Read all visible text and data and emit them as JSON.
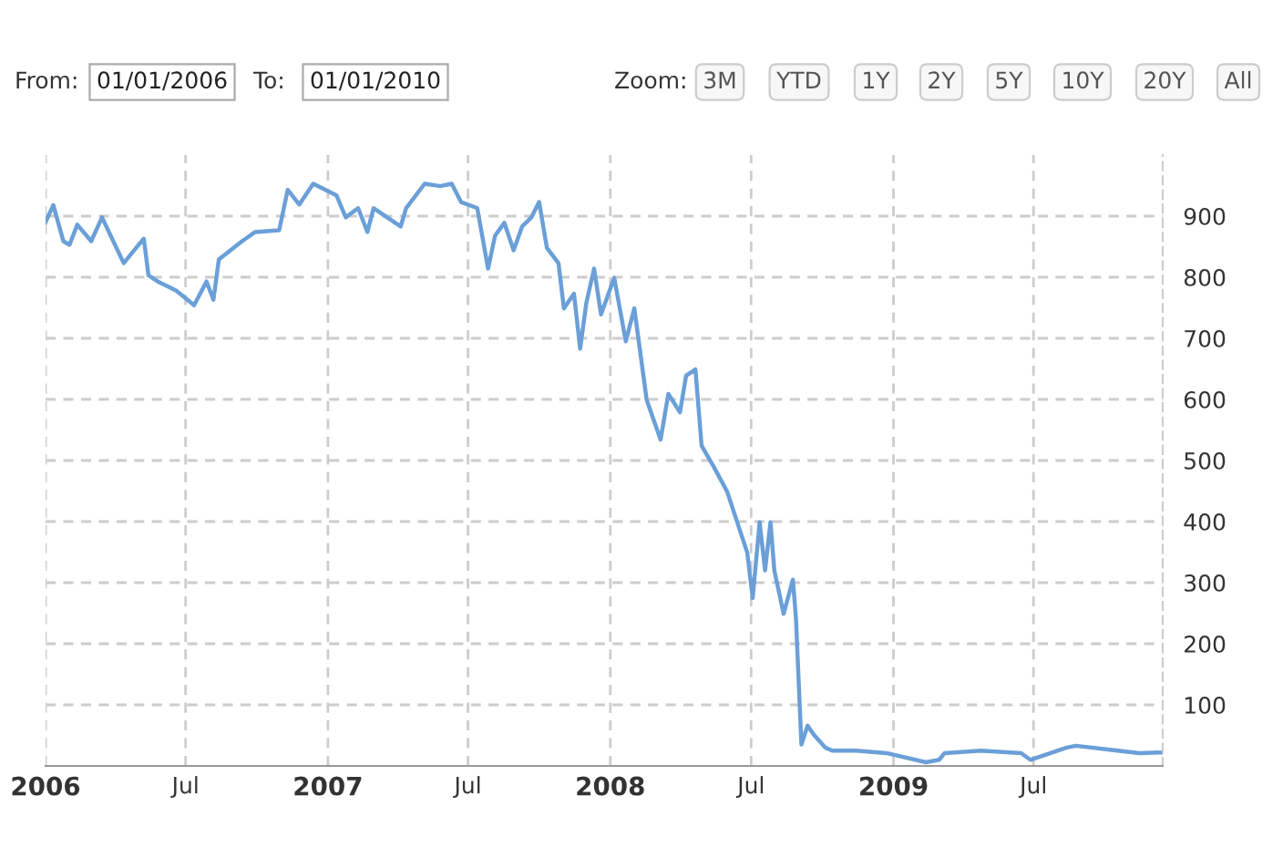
{
  "chart_data": {
    "type": "line",
    "annotations": [
      "From:",
      "01/01/2006",
      "To:",
      "01/01/2010",
      "Zoom:",
      "3M",
      "YTD",
      "1Y",
      "2Y",
      "5Y",
      "10Y",
      "20Y",
      "All"
    ],
    "x": [
      "2006-01-01",
      "2006-01-11",
      "2006-01-24",
      "2006-02-01",
      "2006-02-11",
      "2006-03-01",
      "2006-03-15",
      "2006-03-28",
      "2006-04-12",
      "2006-04-28",
      "2006-05-08",
      "2006-05-14",
      "2006-05-26",
      "2006-06-19",
      "2006-07-12",
      "2006-07-28",
      "2006-08-06",
      "2006-08-13",
      "2006-09-12",
      "2006-09-29",
      "2006-10-30",
      "2006-11-10",
      "2006-11-25",
      "2006-12-13",
      "2007-01-12",
      "2007-01-24",
      "2007-02-09",
      "2007-02-21",
      "2007-03-01",
      "2007-04-05",
      "2007-04-12",
      "2007-05-06",
      "2007-05-26",
      "2007-06-10",
      "2007-06-22",
      "2007-07-13",
      "2007-07-27",
      "2007-08-05",
      "2007-08-17",
      "2007-08-29",
      "2007-09-09",
      "2007-09-21",
      "2007-10-01",
      "2007-10-11",
      "2007-10-26",
      "2007-11-02",
      "2007-11-15",
      "2007-11-23",
      "2007-12-01",
      "2007-12-11",
      "2007-12-20",
      "2008-01-06",
      "2008-01-21",
      "2008-02-01",
      "2008-02-17",
      "2008-03-06",
      "2008-03-16",
      "2008-03-31",
      "2008-04-08",
      "2008-04-20",
      "2008-04-28",
      "2008-05-14",
      "2008-05-31",
      "2008-06-26",
      "2008-07-03",
      "2008-07-12",
      "2008-07-19",
      "2008-07-26",
      "2008-07-31",
      "2008-08-12",
      "2008-08-24",
      "2008-08-28",
      "2008-09-04",
      "2008-09-12",
      "2008-09-20",
      "2008-10-05",
      "2008-10-14",
      "2008-11-14",
      "2008-12-23",
      "2009-02-12",
      "2009-03-01",
      "2009-03-08",
      "2009-04-24",
      "2009-06-15",
      "2009-06-27",
      "2009-08-13",
      "2009-08-25",
      "2009-10-18",
      "2009-11-15",
      "2009-12-13"
    ],
    "series": [
      {
        "color": "#6a9fd8",
        "values": [
          890,
          918,
          859,
          853,
          886,
          859,
          898,
          863,
          823,
          848,
          863,
          803,
          793,
          778,
          754,
          793,
          763,
          829,
          859,
          874,
          877,
          943,
          919,
          953,
          934,
          898,
          913,
          874,
          913,
          883,
          913,
          953,
          949,
          953,
          923,
          913,
          814,
          868,
          889,
          844,
          883,
          898,
          923,
          848,
          823,
          749,
          773,
          683,
          758,
          814,
          739,
          799,
          695,
          749,
          599,
          534,
          609,
          579,
          639,
          649,
          524,
          489,
          449,
          349,
          275,
          399,
          320,
          399,
          320,
          249,
          305,
          240,
          35,
          66,
          51,
          30,
          25,
          25,
          21,
          6,
          10,
          21,
          25,
          21,
          10,
          30,
          33,
          25,
          21,
          22
        ]
      }
    ],
    "xlim": [
      "2006-01-01",
      "2009-12-15"
    ],
    "xticks": [
      {
        "value": "2006-01-01",
        "label": "2006"
      },
      {
        "value": "2006-07-01",
        "label": "Jul"
      },
      {
        "value": "2007-01-01",
        "label": "2007"
      },
      {
        "value": "2007-07-01",
        "label": "Jul"
      },
      {
        "value": "2008-01-01",
        "label": "2008"
      },
      {
        "value": "2008-07-01",
        "label": "Jul"
      },
      {
        "value": "2009-01-01",
        "label": "2009"
      },
      {
        "value": "2009-07-01",
        "label": "Jul"
      }
    ],
    "ylim": [
      0,
      1000
    ],
    "yticks": [
      100,
      200,
      300,
      400,
      500,
      600,
      700,
      800,
      900
    ],
    "grid": true,
    "line_style": "solid",
    "marker": "none"
  }
}
